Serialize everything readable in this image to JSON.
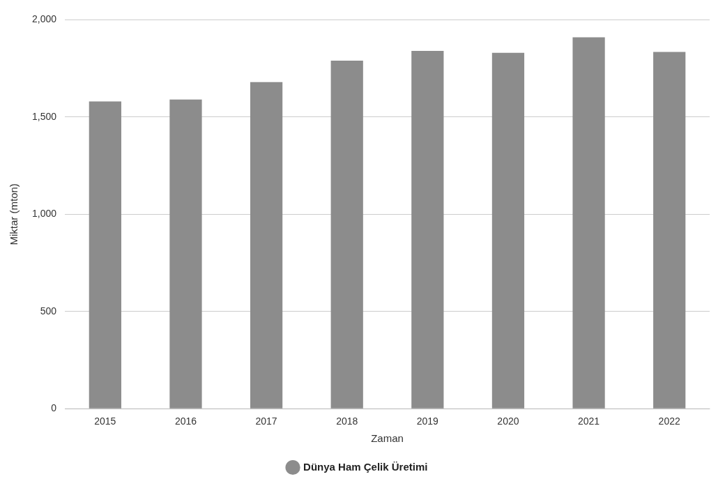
{
  "chart_data": {
    "type": "bar",
    "xlabel": "Zaman",
    "ylabel": "Miktar (mton)",
    "categories": [
      "2015",
      "2016",
      "2017",
      "2018",
      "2019",
      "2020",
      "2021",
      "2022"
    ],
    "series": [
      {
        "name": "Dünya Ham Çelik Üretimi",
        "color": "#8c8c8c",
        "values": [
          1580,
          1590,
          1680,
          1790,
          1840,
          1830,
          1910,
          1835
        ]
      }
    ],
    "ylim": [
      0,
      2000
    ],
    "yticks": [
      {
        "value": 0,
        "label": "0"
      },
      {
        "value": 500,
        "label": "500"
      },
      {
        "value": 1000,
        "label": "1,000"
      },
      {
        "value": 1500,
        "label": "1,500"
      },
      {
        "value": 2000,
        "label": "2,000"
      }
    ],
    "grid": "y",
    "legend": "bottom"
  }
}
